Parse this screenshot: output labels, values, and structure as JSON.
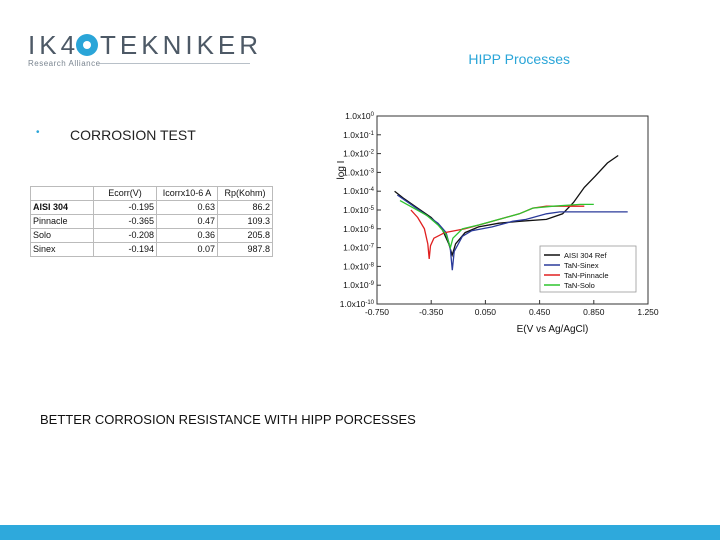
{
  "header": {
    "logo_left": "IK4",
    "logo_right": "TEKNIKER",
    "logo_sub": "Research Alliance",
    "section_title": "HIPP Processes"
  },
  "slide": {
    "bullet": "•",
    "heading": "CORROSION TEST",
    "conclusion": "BETTER CORROSION RESISTANCE WITH HIPP PORCESSES"
  },
  "table": {
    "headers": [
      "",
      "Ecorr(V)",
      "Icorrx10-6 A",
      "Rp(Kohm)"
    ],
    "rows": [
      {
        "name": "AISI 304",
        "ecorr": "-0.195",
        "icorr": "0.63",
        "rp": "86.2"
      },
      {
        "name": "Pinnacle",
        "ecorr": "-0.365",
        "icorr": "0.47",
        "rp": "109.3"
      },
      {
        "name": "Solo",
        "ecorr": "-0.208",
        "icorr": "0.36",
        "rp": "205.8"
      },
      {
        "name": "Sinex",
        "ecorr": "-0.194",
        "icorr": "0.07",
        "rp": "987.8"
      }
    ]
  },
  "chart_data": {
    "type": "line",
    "title": "",
    "xlabel": "E(V vs Ag/AgCl)",
    "ylabel": "log I",
    "xlim": [
      -0.75,
      1.25
    ],
    "ylim": [
      -10,
      0
    ],
    "y_scale": "log",
    "x_ticks": [
      "-0.750",
      "-0.350",
      "0.050",
      "0.450",
      "0.850",
      "1.250"
    ],
    "x_tick_values": [
      -0.75,
      -0.35,
      0.05,
      0.45,
      0.85,
      1.25
    ],
    "y_ticks": [
      "1.0x10^0",
      "1.0x10^-1",
      "1.0x10^-2",
      "1.0x10^-3",
      "1.0x10^-4",
      "1.0x10^-5",
      "1.0x10^-6",
      "1.0x10^-7",
      "1.0x10^-8",
      "1.0x10^-9",
      "1.0x10^-10"
    ],
    "y_tick_values": [
      0,
      -1,
      -2,
      -3,
      -4,
      -5,
      -6,
      -7,
      -8,
      -9,
      -10
    ],
    "legend_position": "bottom-right",
    "series": [
      {
        "name": "AISI 304 Ref",
        "color": "#111111",
        "points": [
          [
            -0.62,
            -4.0
          ],
          [
            -0.55,
            -4.4
          ],
          [
            -0.45,
            -4.9
          ],
          [
            -0.35,
            -5.4
          ],
          [
            -0.27,
            -6.0
          ],
          [
            -0.22,
            -6.8
          ],
          [
            -0.195,
            -7.4
          ],
          [
            -0.17,
            -6.8
          ],
          [
            -0.1,
            -6.2
          ],
          [
            0.0,
            -5.9
          ],
          [
            0.15,
            -5.7
          ],
          [
            0.3,
            -5.6
          ],
          [
            0.5,
            -5.5
          ],
          [
            0.62,
            -5.2
          ],
          [
            0.7,
            -4.6
          ],
          [
            0.78,
            -3.8
          ],
          [
            0.86,
            -3.2
          ],
          [
            0.95,
            -2.5
          ],
          [
            1.03,
            -2.1
          ]
        ]
      },
      {
        "name": "TaN-Sinex",
        "color": "#2a3a9a",
        "points": [
          [
            -0.6,
            -4.2
          ],
          [
            -0.5,
            -4.7
          ],
          [
            -0.4,
            -5.2
          ],
          [
            -0.3,
            -5.7
          ],
          [
            -0.24,
            -6.2
          ],
          [
            -0.21,
            -7.0
          ],
          [
            -0.194,
            -8.2
          ],
          [
            -0.18,
            -7.2
          ],
          [
            -0.12,
            -6.4
          ],
          [
            -0.05,
            -6.1
          ],
          [
            0.1,
            -5.9
          ],
          [
            0.25,
            -5.6
          ],
          [
            0.35,
            -5.5
          ],
          [
            0.5,
            -5.2
          ],
          [
            0.6,
            -5.1
          ],
          [
            0.8,
            -5.1
          ],
          [
            1.1,
            -5.1
          ]
        ]
      },
      {
        "name": "TaN-Pinnacle",
        "color": "#e02020",
        "points": [
          [
            -0.5,
            -5.0
          ],
          [
            -0.45,
            -5.4
          ],
          [
            -0.4,
            -6.0
          ],
          [
            -0.375,
            -6.8
          ],
          [
            -0.365,
            -7.6
          ],
          [
            -0.355,
            -6.9
          ],
          [
            -0.33,
            -6.5
          ],
          [
            -0.25,
            -6.2
          ],
          [
            -0.1,
            -6.0
          ],
          [
            0.05,
            -5.7
          ],
          [
            0.2,
            -5.4
          ],
          [
            0.3,
            -5.2
          ],
          [
            0.4,
            -4.9
          ],
          [
            0.5,
            -4.8
          ],
          [
            0.65,
            -4.8
          ],
          [
            0.78,
            -4.8
          ]
        ]
      },
      {
        "name": "TaN-Solo",
        "color": "#2ec42e",
        "points": [
          [
            -0.58,
            -4.5
          ],
          [
            -0.48,
            -4.9
          ],
          [
            -0.38,
            -5.3
          ],
          [
            -0.3,
            -5.8
          ],
          [
            -0.24,
            -6.3
          ],
          [
            -0.208,
            -7.0
          ],
          [
            -0.19,
            -6.5
          ],
          [
            -0.12,
            -6.0
          ],
          [
            0.0,
            -5.8
          ],
          [
            0.15,
            -5.5
          ],
          [
            0.3,
            -5.2
          ],
          [
            0.4,
            -4.9
          ],
          [
            0.55,
            -4.8
          ],
          [
            0.75,
            -4.7
          ],
          [
            0.85,
            -4.7
          ]
        ]
      }
    ]
  }
}
